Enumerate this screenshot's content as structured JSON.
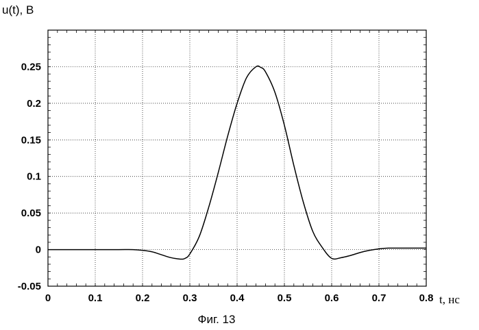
{
  "chart_data": {
    "type": "line",
    "title": "",
    "caption": "Фиг. 13",
    "xlabel": "t, нс",
    "ylabel": "u(t), В",
    "xlim": [
      0,
      0.8
    ],
    "ylim": [
      -0.05,
      0.3
    ],
    "xticks": [
      0,
      0.1,
      0.2,
      0.3,
      0.4,
      0.5,
      0.6,
      0.7,
      0.8
    ],
    "xtick_labels": [
      "0",
      "0.1",
      "0.2",
      "0.3",
      "0.4",
      "0.5",
      "0.6",
      "0.7",
      "0.8"
    ],
    "yticks": [
      -0.05,
      0,
      0.05,
      0.1,
      0.15,
      0.2,
      0.25
    ],
    "ytick_labels": [
      "-0.05",
      "0",
      "0.05",
      "0.1",
      "0.15",
      "0.2",
      "0.25"
    ],
    "grid": true,
    "series": [
      {
        "x": [
          0,
          0.05,
          0.1,
          0.15,
          0.18,
          0.2,
          0.22,
          0.24,
          0.26,
          0.28,
          0.29,
          0.3,
          0.32,
          0.34,
          0.36,
          0.38,
          0.4,
          0.42,
          0.44,
          0.45,
          0.46,
          0.48,
          0.5,
          0.52,
          0.54,
          0.56,
          0.58,
          0.6,
          0.62,
          0.64,
          0.66,
          0.68,
          0.7,
          0.72,
          0.75,
          0.8
        ],
        "y": [
          0,
          0,
          0,
          0,
          0,
          -0.001,
          -0.003,
          -0.007,
          -0.011,
          -0.013,
          -0.012,
          -0.006,
          0.018,
          0.058,
          0.105,
          0.155,
          0.2,
          0.235,
          0.25,
          0.249,
          0.243,
          0.215,
          0.17,
          0.115,
          0.065,
          0.025,
          0.003,
          -0.012,
          -0.011,
          -0.008,
          -0.004,
          -0.001,
          0.001,
          0.002,
          0.002,
          0.002
        ]
      }
    ]
  }
}
